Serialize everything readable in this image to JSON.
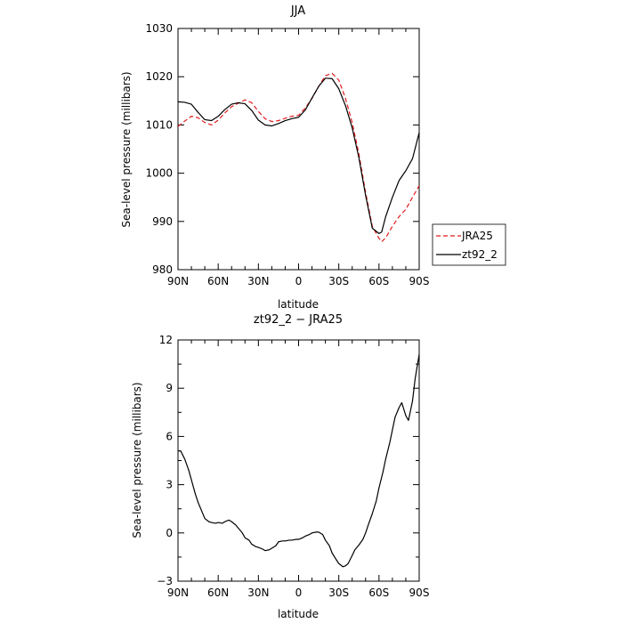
{
  "chart_data": [
    {
      "type": "line",
      "title": "JJA",
      "xlabel": "latitude",
      "ylabel": "Sea-level pressure (millibars)",
      "xlim": [
        90,
        -90
      ],
      "ylim": [
        980,
        1030
      ],
      "xticks": [
        90,
        60,
        30,
        0,
        -30,
        -60,
        -90
      ],
      "xtick_labels": [
        "90N",
        "60N",
        "30N",
        "0",
        "30S",
        "60S",
        "90S"
      ],
      "yticks": [
        980,
        990,
        1000,
        1010,
        1020,
        1030
      ],
      "ytick_labels": [
        "980",
        "990",
        "1000",
        "1010",
        "1020",
        "1030"
      ],
      "legend": "right",
      "series": [
        {
          "name": "JRA25",
          "color": "#e41a1c",
          "dash": "dashed",
          "x": [
            90,
            85,
            80,
            75,
            70,
            65,
            60,
            55,
            50,
            45,
            40,
            35,
            30,
            25,
            20,
            15,
            10,
            5,
            0,
            -5,
            -10,
            -15,
            -20,
            -25,
            -30,
            -35,
            -40,
            -45,
            -50,
            -55,
            -60,
            -62,
            -65,
            -70,
            -75,
            -80,
            -85,
            -90
          ],
          "y": [
            1009.7,
            1010.8,
            1011.8,
            1011.5,
            1010.5,
            1010.0,
            1011.0,
            1012.5,
            1013.8,
            1014.5,
            1015.2,
            1014.6,
            1012.8,
            1011.3,
            1010.7,
            1010.9,
            1011.4,
            1011.8,
            1012.0,
            1013.5,
            1015.5,
            1018.0,
            1020.2,
            1020.7,
            1019.3,
            1015.5,
            1010.5,
            1004.0,
            996.0,
            989.0,
            986.5,
            985.8,
            986.6,
            989.0,
            991.0,
            992.5,
            995.0,
            997.4
          ]
        },
        {
          "name": "zt92_2",
          "color": "#000000",
          "dash": "solid",
          "x": [
            90,
            85,
            80,
            75,
            70,
            65,
            60,
            55,
            50,
            45,
            40,
            35,
            30,
            25,
            20,
            15,
            10,
            5,
            0,
            -5,
            -10,
            -15,
            -20,
            -25,
            -30,
            -35,
            -40,
            -45,
            -50,
            -55,
            -60,
            -62,
            -65,
            -70,
            -75,
            -80,
            -85,
            -90
          ],
          "y": [
            1014.8,
            1014.7,
            1014.3,
            1012.6,
            1011.1,
            1010.9,
            1011.8,
            1013.2,
            1014.3,
            1014.6,
            1014.4,
            1013.0,
            1011.0,
            1010.0,
            1009.8,
            1010.3,
            1010.9,
            1011.3,
            1011.6,
            1013.1,
            1015.6,
            1018.0,
            1019.7,
            1019.6,
            1017.5,
            1014.0,
            1009.4,
            1003.2,
            995.4,
            988.6,
            987.5,
            987.8,
            991.0,
            995.0,
            998.5,
            1000.5,
            1003.0,
            1008.4
          ]
        }
      ]
    },
    {
      "type": "line",
      "title": "zt92_2 − JRA25",
      "xlabel": "latitude",
      "ylabel": "Sea-level pressure (millibars)",
      "xlim": [
        90,
        -90
      ],
      "ylim": [
        -3,
        12
      ],
      "xticks": [
        90,
        60,
        30,
        0,
        -30,
        -60,
        -90
      ],
      "xtick_labels": [
        "90N",
        "60N",
        "30N",
        "0",
        "30S",
        "60S",
        "90S"
      ],
      "yticks": [
        -3,
        0,
        3,
        6,
        9,
        12
      ],
      "ytick_labels": [
        "−3",
        "0",
        "3",
        "6",
        "9",
        "12"
      ],
      "series": [
        {
          "color": "#000000",
          "dash": "solid",
          "x": [
            90,
            88,
            85,
            82,
            80,
            77,
            75,
            72,
            70,
            67,
            65,
            62,
            60,
            57,
            55,
            52,
            50,
            47,
            45,
            42,
            40,
            37,
            35,
            32,
            30,
            27,
            25,
            22,
            20,
            17,
            15,
            12,
            10,
            7,
            5,
            2,
            0,
            -3,
            -5,
            -8,
            -10,
            -13,
            -15,
            -18,
            -20,
            -23,
            -25,
            -28,
            -30,
            -33,
            -35,
            -37,
            -40,
            -42,
            -45,
            -48,
            -50,
            -52,
            -55,
            -58,
            -60,
            -63,
            -65,
            -68,
            -70,
            -72,
            -75,
            -77,
            -80,
            -82,
            -85,
            -87,
            -90
          ],
          "y": [
            5.1,
            5.1,
            4.6,
            3.9,
            3.3,
            2.4,
            1.9,
            1.3,
            0.9,
            0.7,
            0.65,
            0.6,
            0.65,
            0.6,
            0.7,
            0.8,
            0.7,
            0.5,
            0.3,
            0.0,
            -0.3,
            -0.45,
            -0.7,
            -0.85,
            -0.9,
            -1.0,
            -1.1,
            -1.05,
            -0.95,
            -0.8,
            -0.55,
            -0.5,
            -0.5,
            -0.45,
            -0.45,
            -0.4,
            -0.4,
            -0.3,
            -0.2,
            -0.1,
            -0.0,
            0.05,
            0.05,
            -0.1,
            -0.45,
            -0.8,
            -1.25,
            -1.65,
            -1.9,
            -2.1,
            -2.05,
            -1.9,
            -1.4,
            -1.05,
            -0.75,
            -0.4,
            0.0,
            0.5,
            1.2,
            2.0,
            2.8,
            3.8,
            4.6,
            5.6,
            6.4,
            7.2,
            7.8,
            8.1,
            7.3,
            7.0,
            8.2,
            9.6,
            11.1
          ]
        }
      ]
    }
  ]
}
